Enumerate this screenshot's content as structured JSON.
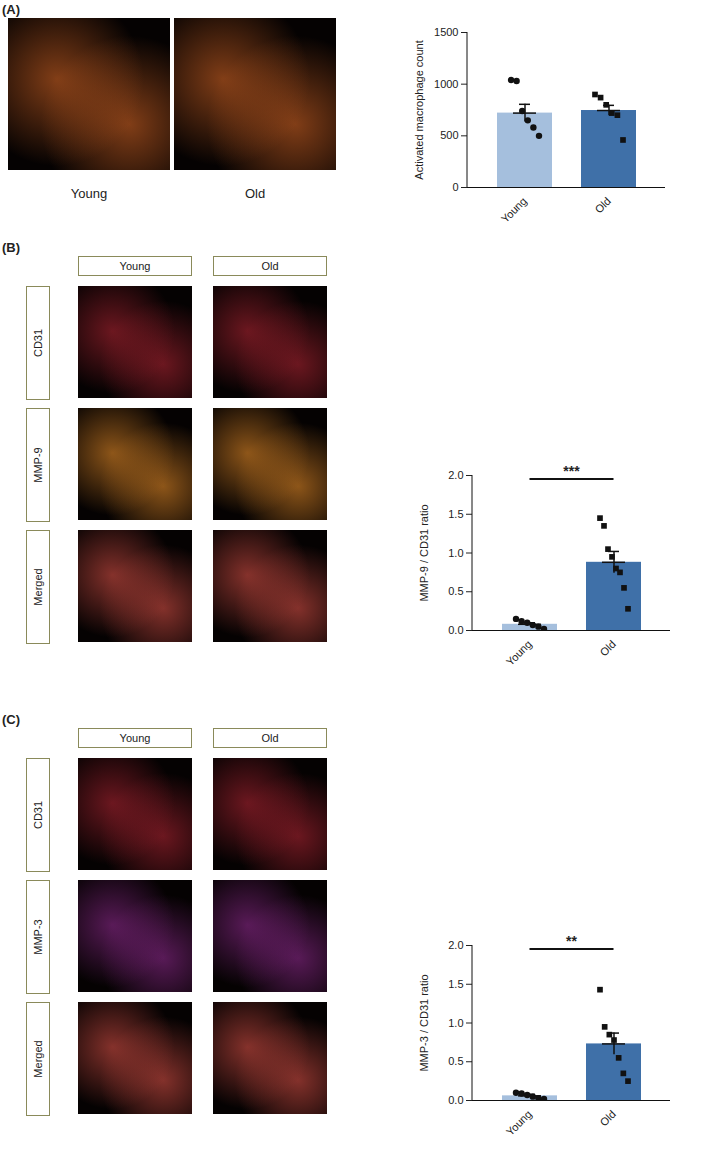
{
  "chart_data": [
    {
      "type": "bar",
      "panel": "(A)",
      "image_columns": [
        "Young",
        "Old"
      ],
      "categories": [
        "Young",
        "Old"
      ],
      "values": [
        720,
        745
      ],
      "errors": [
        85,
        50
      ],
      "points": [
        [
          1040,
          1030,
          740,
          650,
          580,
          500
        ],
        [
          900,
          870,
          800,
          720,
          700,
          460
        ]
      ],
      "colors": [
        "#a5bfdd",
        "#3f70a8"
      ],
      "y_label": "Activated macrophage count",
      "ylim": [
        0,
        1500
      ],
      "yticks": [
        0,
        500,
        1000,
        1500
      ]
    },
    {
      "type": "bar",
      "panel": "(B)",
      "image_columns": [
        "Young",
        "Old"
      ],
      "image_rows": [
        "CD31",
        "MMP-9",
        "Merged"
      ],
      "categories": [
        "Young",
        "Old"
      ],
      "values": [
        0.08,
        0.88
      ],
      "errors": [
        0.02,
        0.14
      ],
      "points": [
        [
          0.15,
          0.12,
          0.1,
          0.07,
          0.05,
          0.02
        ],
        [
          1.45,
          1.35,
          1.05,
          0.95,
          0.8,
          0.75,
          0.55,
          0.28
        ]
      ],
      "colors": [
        "#a5bfdd",
        "#3f70a8"
      ],
      "y_label": "MMP-9 / CD31 ratio",
      "ylim": [
        0,
        2
      ],
      "yticks": [
        {
          "value": 0,
          "label": "0.0"
        },
        {
          "value": 0.5,
          "label": "0.5"
        },
        {
          "value": 1,
          "label": "1.0"
        },
        {
          "value": 1.5,
          "label": "1.5"
        },
        {
          "value": 2,
          "label": "2.0"
        }
      ],
      "annotations": [
        {
          "text": "***",
          "from": "Young",
          "to": "Old"
        }
      ]
    },
    {
      "type": "bar",
      "panel": "(C)",
      "image_columns": [
        "Young",
        "Old"
      ],
      "image_rows": [
        "CD31",
        "MMP-3",
        "Merged"
      ],
      "categories": [
        "Young",
        "Old"
      ],
      "values": [
        0.06,
        0.73
      ],
      "errors": [
        0.02,
        0.14
      ],
      "points": [
        [
          0.1,
          0.09,
          0.07,
          0.05,
          0.03,
          0.02
        ],
        [
          1.43,
          0.95,
          0.85,
          0.78,
          0.55,
          0.35,
          0.25
        ]
      ],
      "colors": [
        "#a5bfdd",
        "#3f70a8"
      ],
      "y_label": "MMP-3 / CD31 ratio",
      "ylim": [
        0,
        2
      ],
      "yticks": [
        {
          "value": 0,
          "label": "0.0"
        },
        {
          "value": 0.5,
          "label": "0.5"
        },
        {
          "value": 1,
          "label": "1.0"
        },
        {
          "value": 1.5,
          "label": "1.5"
        },
        {
          "value": 2,
          "label": "2.0"
        }
      ],
      "annotations": [
        {
          "text": "**",
          "from": "Young",
          "to": "Old"
        }
      ]
    }
  ]
}
